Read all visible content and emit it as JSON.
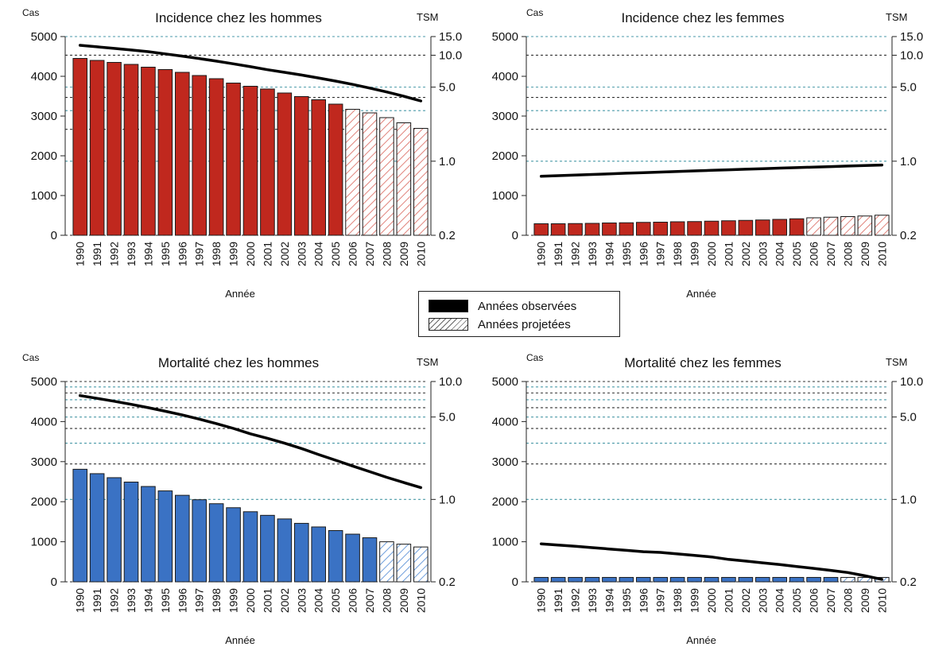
{
  "chart_data": [
    {
      "type": "bar",
      "title": "Incidence chez les hommes",
      "y_left_label": "Cas",
      "y_right_label": "TSM",
      "xlabel": "Année",
      "ylim": [
        0,
        5000
      ],
      "y_ticks": [
        0,
        1000,
        2000,
        3000,
        4000,
        5000
      ],
      "right_scale": "log",
      "right_ticks": [
        "0.2",
        "1.0",
        "5.0",
        "10.0",
        "15.0"
      ],
      "categories": [
        "1990",
        "1991",
        "1992",
        "1993",
        "1994",
        "1995",
        "1996",
        "1997",
        "1998",
        "1999",
        "2000",
        "2001",
        "2002",
        "2003",
        "2004",
        "2005",
        "2006",
        "2007",
        "2008",
        "2009",
        "2010"
      ],
      "bar_color": "#c0281e",
      "projected_start": "2006",
      "values": [
        4450,
        4400,
        4350,
        4300,
        4230,
        4170,
        4100,
        4020,
        3940,
        3830,
        3750,
        3680,
        3580,
        3490,
        3410,
        3300,
        3170,
        3080,
        2960,
        2830,
        2690
      ],
      "tsm": [
        12.4,
        12.0,
        11.6,
        11.2,
        10.8,
        10.3,
        9.8,
        9.3,
        8.8,
        8.3,
        7.8,
        7.3,
        6.9,
        6.5,
        6.1,
        5.7,
        5.3,
        4.9,
        4.5,
        4.1,
        3.7
      ]
    },
    {
      "type": "bar",
      "title": "Incidence chez les femmes",
      "y_left_label": "Cas",
      "y_right_label": "TSM",
      "xlabel": "Année",
      "ylim": [
        0,
        5000
      ],
      "y_ticks": [
        0,
        1000,
        2000,
        3000,
        4000,
        5000
      ],
      "right_scale": "log",
      "right_ticks": [
        "0.2",
        "1.0",
        "5.0",
        "10.0",
        "15.0"
      ],
      "categories": [
        "1990",
        "1991",
        "1992",
        "1993",
        "1994",
        "1995",
        "1996",
        "1997",
        "1998",
        "1999",
        "2000",
        "2001",
        "2002",
        "2003",
        "2004",
        "2005",
        "2006",
        "2007",
        "2008",
        "2009",
        "2010"
      ],
      "bar_color": "#c0281e",
      "projected_start": "2006",
      "values": [
        290,
        290,
        295,
        300,
        310,
        315,
        325,
        330,
        340,
        345,
        355,
        365,
        375,
        385,
        400,
        415,
        440,
        455,
        470,
        485,
        505
      ],
      "tsm": [
        0.72,
        0.73,
        0.74,
        0.75,
        0.76,
        0.77,
        0.78,
        0.79,
        0.8,
        0.81,
        0.82,
        0.83,
        0.84,
        0.85,
        0.86,
        0.87,
        0.88,
        0.89,
        0.9,
        0.91,
        0.92
      ]
    },
    {
      "type": "bar",
      "title": "Mortalité chez les hommes",
      "y_left_label": "Cas",
      "y_right_label": "TSM",
      "xlabel": "Année",
      "ylim": [
        0,
        5000
      ],
      "y_ticks": [
        0,
        1000,
        2000,
        3000,
        4000,
        5000
      ],
      "right_scale": "log",
      "right_ticks": [
        "0.2",
        "1.0",
        "5.0",
        "10.0"
      ],
      "categories": [
        "1990",
        "1991",
        "1992",
        "1993",
        "1994",
        "1995",
        "1996",
        "1997",
        "1998",
        "1999",
        "2000",
        "2001",
        "2002",
        "2003",
        "2004",
        "2005",
        "2006",
        "2007",
        "2008",
        "2009",
        "2010"
      ],
      "bar_color": "#3a72c4",
      "projected_start": "2008",
      "values": [
        2810,
        2700,
        2600,
        2490,
        2380,
        2270,
        2160,
        2050,
        1950,
        1850,
        1750,
        1660,
        1570,
        1460,
        1370,
        1280,
        1190,
        1100,
        1000,
        940,
        870
      ],
      "tsm": [
        7.6,
        7.2,
        6.8,
        6.4,
        6.0,
        5.6,
        5.2,
        4.8,
        4.4,
        4.0,
        3.6,
        3.3,
        3.0,
        2.7,
        2.4,
        2.15,
        1.92,
        1.72,
        1.54,
        1.39,
        1.26
      ]
    },
    {
      "type": "bar",
      "title": "Mortalité chez les femmes",
      "y_left_label": "Cas",
      "y_right_label": "TSM",
      "xlabel": "Année",
      "ylim": [
        0,
        5000
      ],
      "y_ticks": [
        0,
        1000,
        2000,
        3000,
        4000,
        5000
      ],
      "right_scale": "log",
      "right_ticks": [
        "0.2",
        "1.0",
        "5.0",
        "10.0"
      ],
      "categories": [
        "1990",
        "1991",
        "1992",
        "1993",
        "1994",
        "1995",
        "1996",
        "1997",
        "1998",
        "1999",
        "2000",
        "2001",
        "2002",
        "2003",
        "2004",
        "2005",
        "2006",
        "2007",
        "2008",
        "2009",
        "2010"
      ],
      "bar_color": "#3a72c4",
      "projected_start": "2008",
      "values": [
        110,
        110,
        110,
        110,
        110,
        110,
        110,
        110,
        110,
        110,
        110,
        110,
        110,
        110,
        110,
        110,
        110,
        110,
        110,
        110,
        110
      ],
      "tsm": [
        0.42,
        0.41,
        0.4,
        0.39,
        0.38,
        0.37,
        0.36,
        0.355,
        0.345,
        0.335,
        0.325,
        0.31,
        0.3,
        0.29,
        0.28,
        0.27,
        0.26,
        0.25,
        0.24,
        0.225,
        0.21
      ]
    }
  ],
  "legend": {
    "observed": "Années observées",
    "projected": "Années projetées"
  }
}
